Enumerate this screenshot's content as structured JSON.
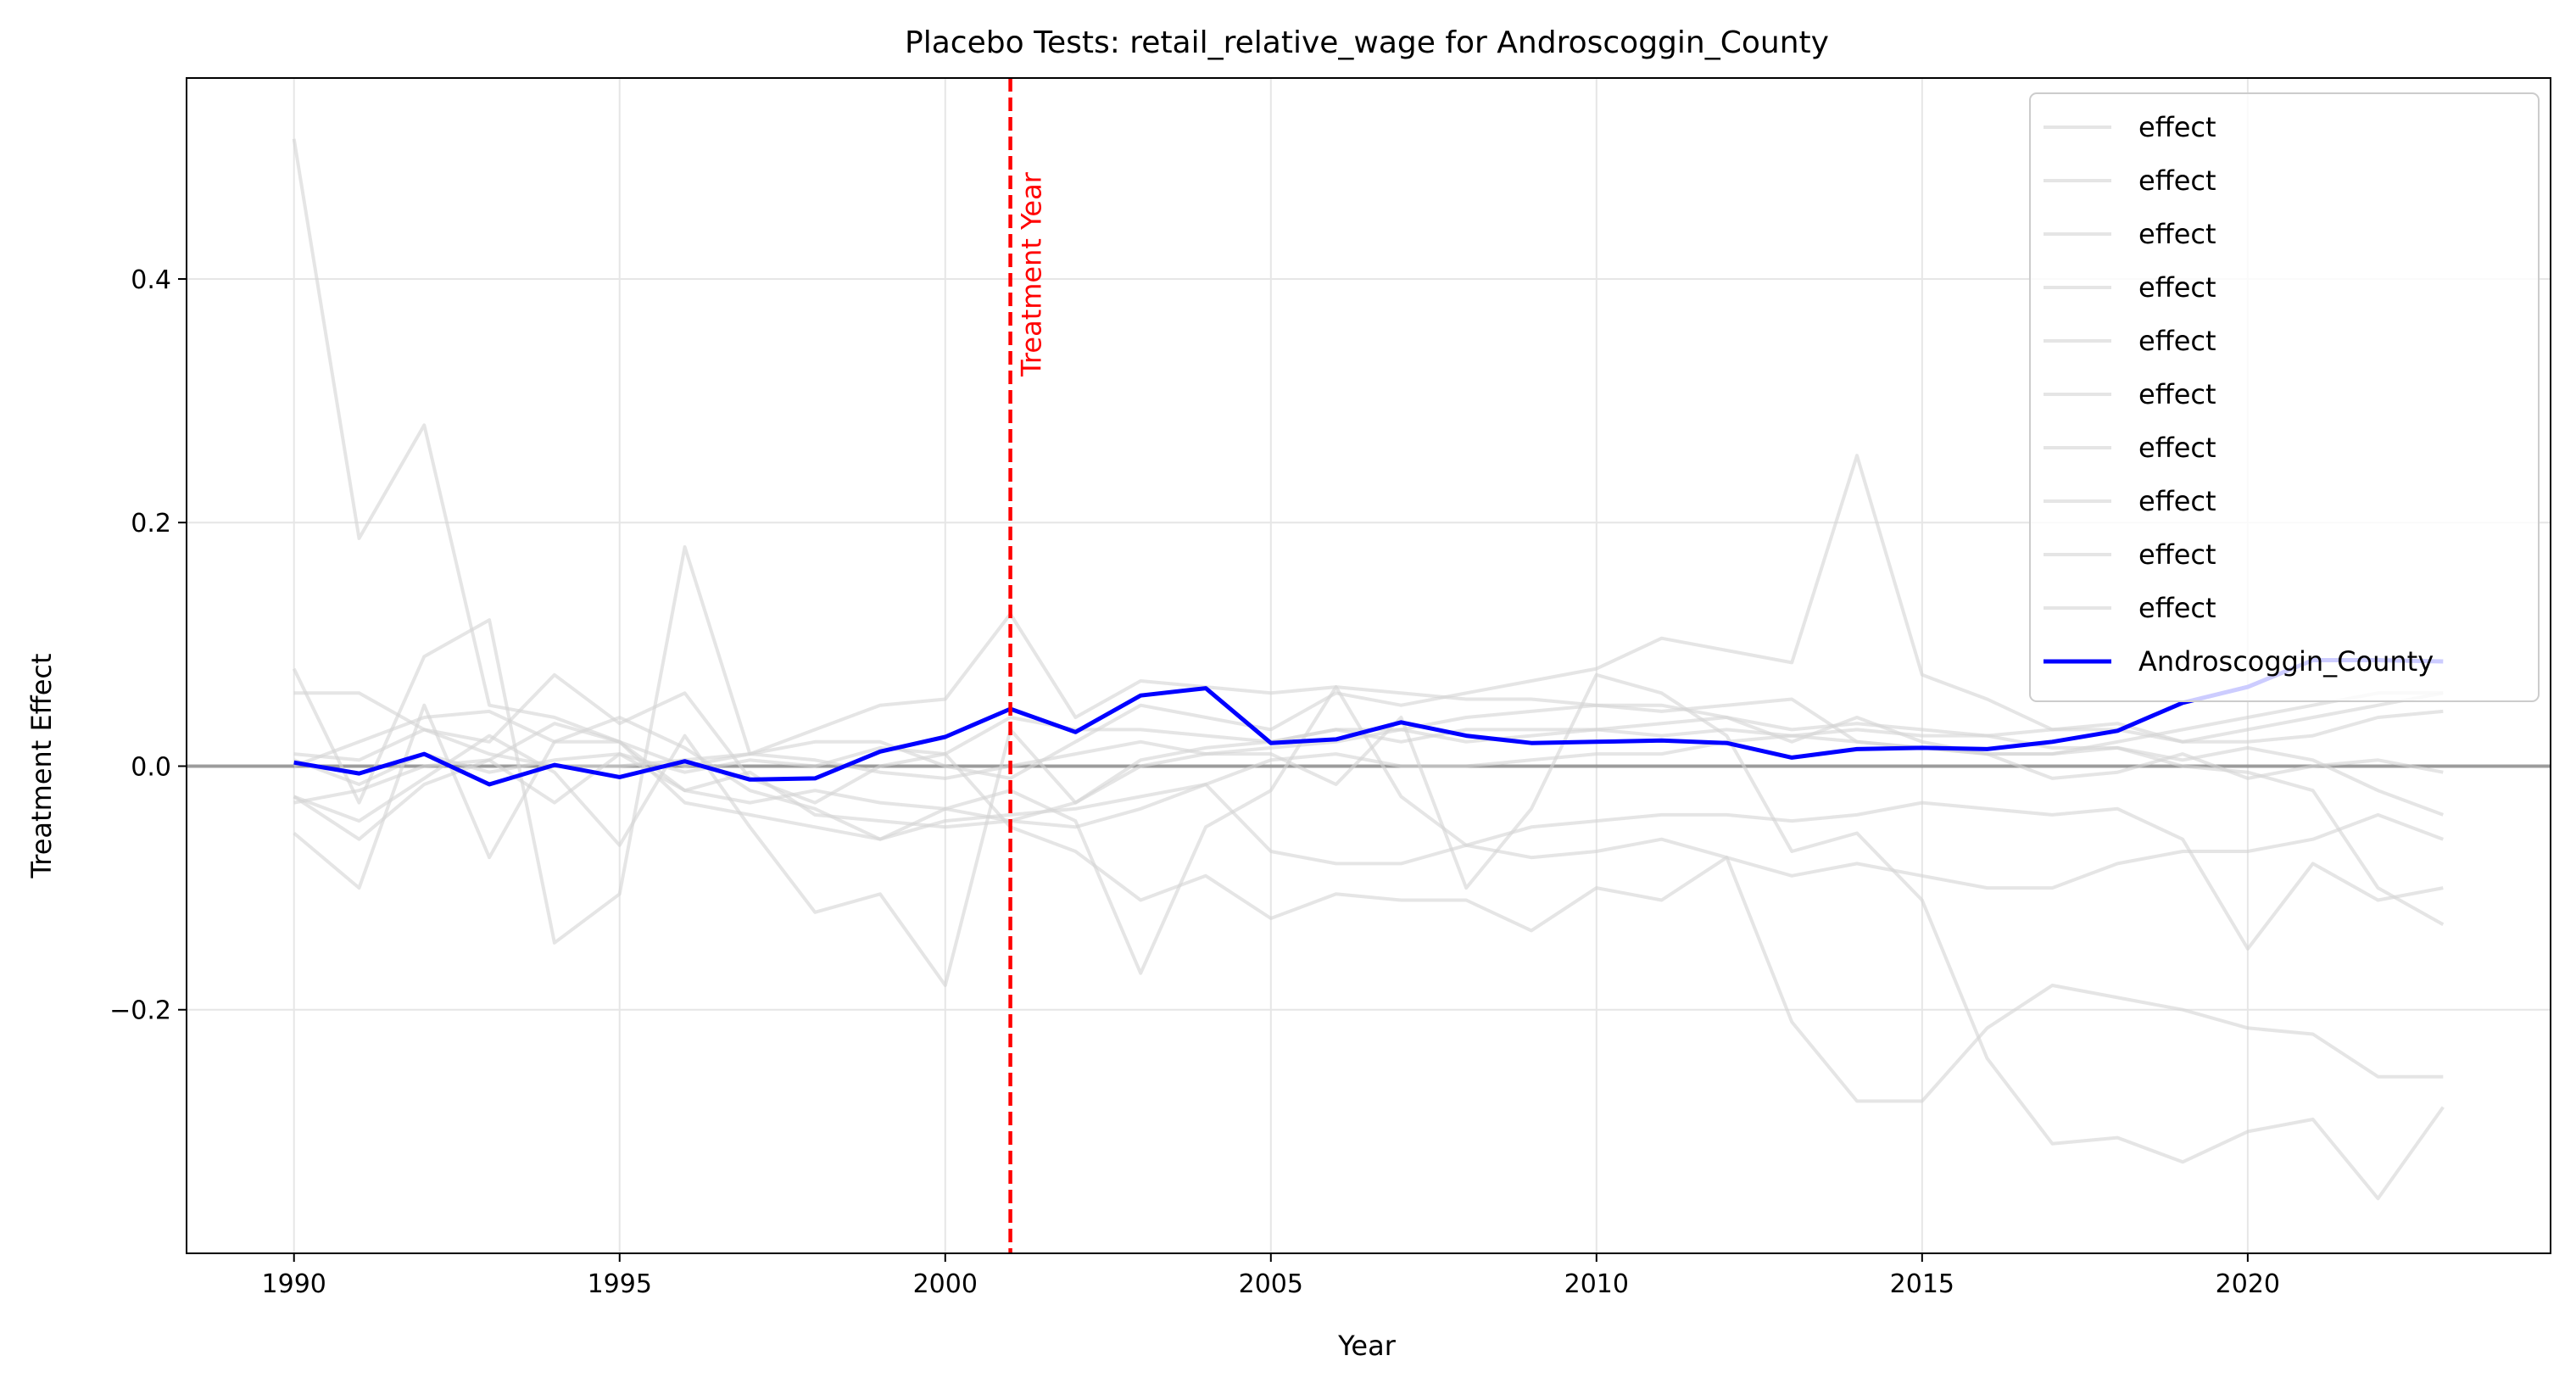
{
  "chart_data": {
    "type": "line",
    "title": "Placebo Tests: retail_relative_wage for Androscoggin_County",
    "xlabel": "Year",
    "ylabel": "Treatment Effect",
    "xlim": [
      1988.35,
      2024.65
    ],
    "ylim": [
      -0.4,
      0.565
    ],
    "xticks": [
      1990,
      1995,
      2000,
      2005,
      2010,
      2015,
      2020
    ],
    "yticks": [
      -0.2,
      0.0,
      0.2,
      0.4
    ],
    "ytick_labels": [
      "−0.2",
      "0.0",
      "0.2",
      "0.4"
    ],
    "grid": true,
    "legend_position": "top-right",
    "zero_line": 0.0,
    "treatment_year": 2001,
    "treatment_label": "Treatment Year",
    "colors": {
      "placebo": "#d3d3d3",
      "treated": "#0000ff",
      "treatment_line": "#ff0000",
      "zero_line": "#808080"
    },
    "x": [
      1990,
      1991,
      1992,
      1993,
      1994,
      1995,
      1996,
      1997,
      1998,
      1999,
      2000,
      2001,
      2002,
      2003,
      2004,
      2005,
      2006,
      2007,
      2008,
      2009,
      2010,
      2011,
      2012,
      2013,
      2014,
      2015,
      2016,
      2017,
      2018,
      2019,
      2020,
      2021,
      2022,
      2023
    ],
    "series": [
      {
        "name": "effect",
        "values": [
          0.515,
          0.187,
          0.28,
          0.05,
          0.04,
          0.02,
          0.0,
          0.01,
          0.02,
          0.02,
          0.0,
          -0.01,
          0.02,
          0.05,
          0.04,
          0.03,
          0.06,
          0.05,
          0.06,
          0.07,
          0.08,
          0.105,
          0.095,
          0.085,
          0.255,
          0.075,
          0.055,
          0.03,
          0.035,
          0.02,
          0.03,
          0.04,
          0.05,
          0.06
        ]
      },
      {
        "name": "effect",
        "values": [
          0.08,
          -0.03,
          0.09,
          0.12,
          -0.145,
          -0.105,
          0.18,
          0.01,
          0.03,
          0.05,
          0.055,
          0.125,
          0.04,
          0.07,
          0.065,
          0.06,
          0.065,
          0.06,
          0.055,
          0.055,
          0.05,
          0.045,
          0.05,
          0.055,
          0.02,
          0.015,
          0.01,
          0.01,
          0.02,
          0.03,
          0.04,
          0.05,
          0.06,
          0.06
        ]
      },
      {
        "name": "effect",
        "values": [
          -0.055,
          -0.1,
          0.05,
          -0.075,
          0.02,
          0.04,
          0.015,
          -0.02,
          -0.035,
          -0.06,
          -0.035,
          -0.02,
          -0.045,
          -0.17,
          -0.05,
          -0.02,
          0.065,
          -0.025,
          -0.065,
          -0.075,
          -0.07,
          -0.06,
          -0.075,
          -0.09,
          -0.08,
          -0.09,
          -0.1,
          -0.1,
          -0.08,
          -0.07,
          -0.07,
          -0.06,
          -0.04,
          -0.06
        ]
      },
      {
        "name": "effect",
        "values": [
          0.06,
          0.06,
          0.03,
          0.02,
          0.075,
          0.035,
          0.06,
          -0.01,
          -0.03,
          0.0,
          0.01,
          -0.05,
          -0.07,
          -0.11,
          -0.09,
          -0.125,
          -0.105,
          -0.11,
          -0.11,
          -0.135,
          -0.1,
          -0.11,
          -0.075,
          -0.21,
          -0.275,
          -0.275,
          -0.215,
          -0.18,
          -0.19,
          -0.2,
          -0.215,
          -0.22,
          -0.255,
          -0.255
        ]
      },
      {
        "name": "effect",
        "values": [
          -0.025,
          -0.045,
          -0.01,
          0.025,
          -0.005,
          -0.065,
          0.025,
          -0.05,
          -0.12,
          -0.105,
          -0.18,
          0.03,
          -0.03,
          0.0,
          0.01,
          0.01,
          -0.015,
          0.04,
          -0.1,
          -0.035,
          0.075,
          0.06,
          0.025,
          -0.07,
          -0.055,
          -0.11,
          -0.24,
          -0.31,
          -0.305,
          -0.325,
          -0.3,
          -0.29,
          -0.355,
          -0.28
        ]
      },
      {
        "name": "effect",
        "values": [
          0.0,
          0.02,
          0.04,
          0.045,
          0.02,
          0.02,
          -0.03,
          -0.04,
          -0.05,
          -0.06,
          -0.045,
          -0.04,
          -0.035,
          -0.025,
          -0.015,
          -0.07,
          -0.08,
          -0.08,
          -0.065,
          -0.05,
          -0.045,
          -0.04,
          -0.04,
          -0.045,
          -0.04,
          -0.03,
          -0.035,
          -0.04,
          -0.035,
          -0.06,
          -0.15,
          -0.08,
          -0.11,
          -0.1
        ]
      },
      {
        "name": "effect",
        "values": [
          0.01,
          0.005,
          0.03,
          0.01,
          0.0,
          0.0,
          0.005,
          0.01,
          0.005,
          -0.005,
          -0.01,
          0.0,
          0.01,
          0.02,
          0.01,
          0.015,
          0.02,
          0.03,
          0.04,
          0.045,
          0.05,
          0.05,
          0.04,
          0.02,
          0.04,
          0.02,
          0.01,
          -0.01,
          -0.005,
          0.01,
          -0.01,
          0.0,
          0.005,
          -0.005
        ]
      },
      {
        "name": "effect",
        "values": [
          -0.03,
          -0.02,
          0.0,
          0.005,
          0.035,
          0.02,
          -0.02,
          -0.03,
          -0.02,
          -0.03,
          -0.035,
          -0.045,
          -0.03,
          0.005,
          0.015,
          0.02,
          0.03,
          0.02,
          0.03,
          0.03,
          0.03,
          0.035,
          0.04,
          0.03,
          0.035,
          0.03,
          0.025,
          0.015,
          0.015,
          0.005,
          0.015,
          0.005,
          -0.02,
          -0.04
        ]
      },
      {
        "name": "effect",
        "values": [
          0.005,
          -0.015,
          0.01,
          -0.005,
          0.005,
          0.01,
          -0.005,
          0.005,
          0.0,
          0.015,
          0.01,
          0.04,
          0.03,
          0.03,
          0.025,
          0.02,
          0.03,
          0.03,
          0.02,
          0.025,
          0.03,
          0.025,
          0.03,
          0.025,
          0.02,
          0.015,
          0.01,
          0.01,
          0.015,
          0.0,
          -0.005,
          -0.02,
          -0.1,
          -0.13
        ]
      },
      {
        "name": "effect",
        "values": [
          -0.025,
          -0.06,
          -0.015,
          0.005,
          -0.03,
          0.01,
          -0.02,
          -0.005,
          -0.04,
          -0.045,
          -0.05,
          -0.045,
          -0.05,
          -0.035,
          -0.015,
          0.005,
          0.01,
          0.0,
          0.0,
          0.005,
          0.01,
          0.01,
          0.02,
          0.025,
          0.03,
          0.025,
          0.025,
          0.03,
          0.03,
          0.02,
          0.02,
          0.025,
          0.04,
          0.045
        ]
      },
      {
        "name": "Androscoggin_County",
        "values": [
          0.003,
          -0.006,
          0.01,
          -0.015,
          0.001,
          -0.009,
          0.004,
          -0.011,
          -0.01,
          0.012,
          0.024,
          0.047,
          0.028,
          0.058,
          0.064,
          0.019,
          0.022,
          0.036,
          0.025,
          0.019,
          0.02,
          0.021,
          0.019,
          0.007,
          0.014,
          0.015,
          0.014,
          0.02,
          0.029,
          0.052,
          0.065,
          0.087,
          0.087,
          0.086
        ]
      }
    ]
  }
}
